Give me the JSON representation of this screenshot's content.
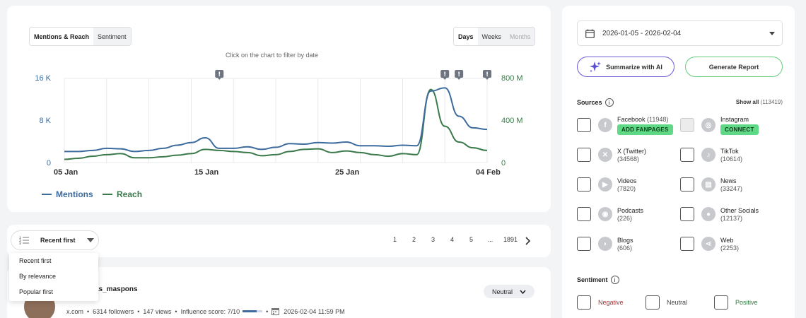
{
  "chart_tabs": {
    "mentions_reach": "Mentions & Reach",
    "sentiment": "Sentiment"
  },
  "period_tabs": {
    "days": "Days",
    "weeks": "Weeks",
    "months": "Months"
  },
  "chart_hint": "Click on the chart to filter by date",
  "chart_data": {
    "type": "line",
    "x": [
      "01-05",
      "01-06",
      "01-07",
      "01-08",
      "01-09",
      "01-10",
      "01-11",
      "01-12",
      "01-13",
      "01-14",
      "01-15",
      "01-16",
      "01-17",
      "01-18",
      "01-19",
      "01-20",
      "01-21",
      "01-22",
      "01-23",
      "01-24",
      "01-25",
      "01-26",
      "01-27",
      "01-28",
      "01-29",
      "01-30",
      "01-31",
      "02-01",
      "02-02",
      "02-03",
      "02-04"
    ],
    "x_tick_labels": [
      "05 Jan",
      "15 Jan",
      "25 Jan",
      "04 Feb"
    ],
    "y_left_ticks": [
      "16 K",
      "8 K",
      "0"
    ],
    "y_right_ticks": [
      "800 M",
      "400 M",
      "0"
    ],
    "ylim_left": [
      0,
      16000
    ],
    "ylim_right": [
      0,
      800
    ],
    "series": [
      {
        "name": "Mentions",
        "axis": "left",
        "color": "#3d6b9e",
        "values": [
          2100,
          2100,
          2300,
          2700,
          2600,
          2100,
          2300,
          2700,
          3300,
          3800,
          4700,
          2700,
          2700,
          3000,
          2500,
          2900,
          3600,
          3500,
          3800,
          3700,
          3900,
          3200,
          3200,
          3100,
          3300,
          3200,
          13600,
          14200,
          8800,
          6600,
          6300
        ]
      },
      {
        "name": "Reach",
        "axis": "left",
        "color": "#3a7a4a",
        "values": [
          600,
          800,
          1200,
          1500,
          1700,
          900,
          900,
          1100,
          1400,
          1700,
          2500,
          2300,
          2100,
          1900,
          1300,
          1500,
          2100,
          2500,
          2600,
          1900,
          2200,
          1900,
          1500,
          1200,
          1700,
          1500,
          13900,
          6900,
          3900,
          2800,
          2300
        ]
      }
    ],
    "alert_markers": [
      "01-16",
      "02-01",
      "02-02",
      "02-04"
    ],
    "grid": true
  },
  "legend": {
    "mentions": "Mentions",
    "reach": "Reach"
  },
  "sort": {
    "selected": "Recent first",
    "options": [
      "Recent first",
      "By relevance",
      "Popular first"
    ]
  },
  "pagination": {
    "pages": [
      "1",
      "2",
      "3",
      "4",
      "5",
      "...",
      "1891"
    ],
    "next_icon": "chevron-right-icon"
  },
  "post": {
    "author": "as_maspons",
    "source": "x.com",
    "followers": "6314 followers",
    "views": "147 views",
    "influence": "Influence score: 7/10",
    "influence_level": 0.7,
    "date": "2026-02-04 11:59 PM",
    "sentiment": "Neutral"
  },
  "sidebar": {
    "date_range": "2026-01-05 - 2026-02-04",
    "summarize": "Summarize with AI",
    "generate": "Generate Report",
    "sources_title": "Sources",
    "show_all": "Show all",
    "show_all_count": "(113419)",
    "sources": [
      {
        "name": "Facebook",
        "count": "(11948)",
        "tag": "ADD FANPAGES",
        "icon": "facebook-icon"
      },
      {
        "name": "Instagram",
        "count": "",
        "tag": "CONNECT",
        "icon": "instagram-icon"
      },
      {
        "name": "X (Twitter)",
        "count": "(34568)",
        "icon": "x-twitter-icon"
      },
      {
        "name": "TikTok",
        "count": "(10614)",
        "icon": "tiktok-icon"
      },
      {
        "name": "Videos",
        "count": "(7820)",
        "icon": "play-icon"
      },
      {
        "name": "News",
        "count": "(33247)",
        "icon": "newspaper-icon"
      },
      {
        "name": "Podcasts",
        "count": "(226)",
        "icon": "podcast-icon"
      },
      {
        "name": "Other Socials",
        "count": "(12137)",
        "icon": "chat-bubbles-icon"
      },
      {
        "name": "Blogs",
        "count": "(606)",
        "icon": "rss-icon"
      },
      {
        "name": "Web",
        "count": "(2253)",
        "icon": "share-icon"
      }
    ],
    "sentiment_title": "Sentiment",
    "sentiments": [
      {
        "label": "Negative",
        "color": "#a2353a"
      },
      {
        "label": "Neutral",
        "color": "#444444"
      },
      {
        "label": "Positive",
        "color": "#2f7a3e"
      }
    ]
  },
  "colors": {
    "mentions": "#3d6b9e",
    "reach": "#3a7a4a",
    "tag_green": "#5fd985",
    "ai_border": "#6a5bd6",
    "report_border": "#66cd7e"
  }
}
